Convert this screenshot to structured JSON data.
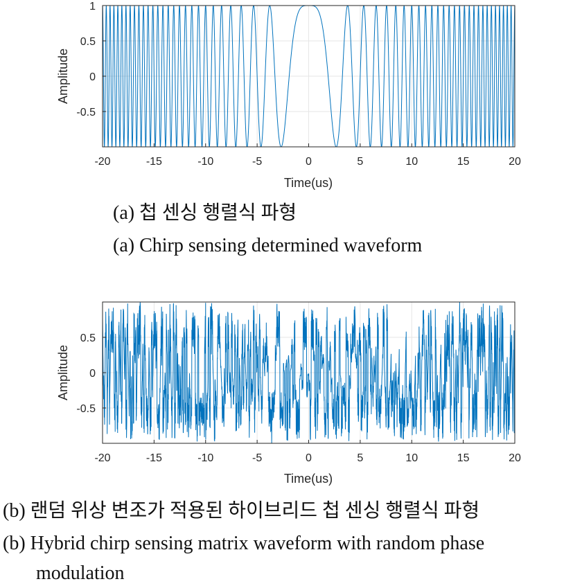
{
  "captions": {
    "a_ko": "(a) 첩 센싱 행렬식 파형",
    "a_en": "(a) Chirp sensing determined waveform",
    "b_ko": "(b) 랜덤 위상 변조가 적용된 하이브리드 첩 센싱 행렬식 파형",
    "b_en_line1": "(b) Hybrid chirp sensing matrix waveform with random phase",
    "b_en_line2": "modulation"
  },
  "colors": {
    "signal": "#0072BD",
    "axes": "#262626",
    "grid": "#e6e6e6"
  },
  "chart_data": [
    {
      "type": "line",
      "xlabel": "Time(us)",
      "ylabel": "Amplitude",
      "xlim": [
        -20,
        20
      ],
      "ylim": [
        -1,
        1
      ],
      "xticks": [
        -20,
        -15,
        -10,
        -5,
        0,
        5,
        10,
        15,
        20
      ],
      "xtick_labels": [
        "-20",
        "-15",
        "-10",
        "-5",
        "0",
        "5",
        "10",
        "15",
        "20"
      ],
      "yticks": [
        1,
        0.5,
        0,
        -0.5
      ],
      "ytick_labels": [
        "1",
        "0.5",
        "0",
        "-0.5"
      ],
      "grid": true,
      "signal": "chirp cosine, peak at t=0, frequency increasing with |t|, amplitude 1"
    },
    {
      "type": "line",
      "xlabel": "Time(us)",
      "ylabel": "Amplitude",
      "xlim": [
        -20,
        20
      ],
      "ylim": [
        -1,
        1
      ],
      "xticks": [
        -20,
        -15,
        -10,
        -5,
        0,
        5,
        10,
        15,
        20
      ],
      "xtick_labels": [
        "-20",
        "-15",
        "-10",
        "-5",
        "0",
        "5",
        "10",
        "15",
        "20"
      ],
      "yticks": [
        0.5,
        0,
        -0.5
      ],
      "ytick_labels": [
        "0.5",
        "0",
        "-0.5"
      ],
      "grid": true,
      "signal": "chirp with random phase modulation, amplitude within [-1, 1]"
    }
  ]
}
